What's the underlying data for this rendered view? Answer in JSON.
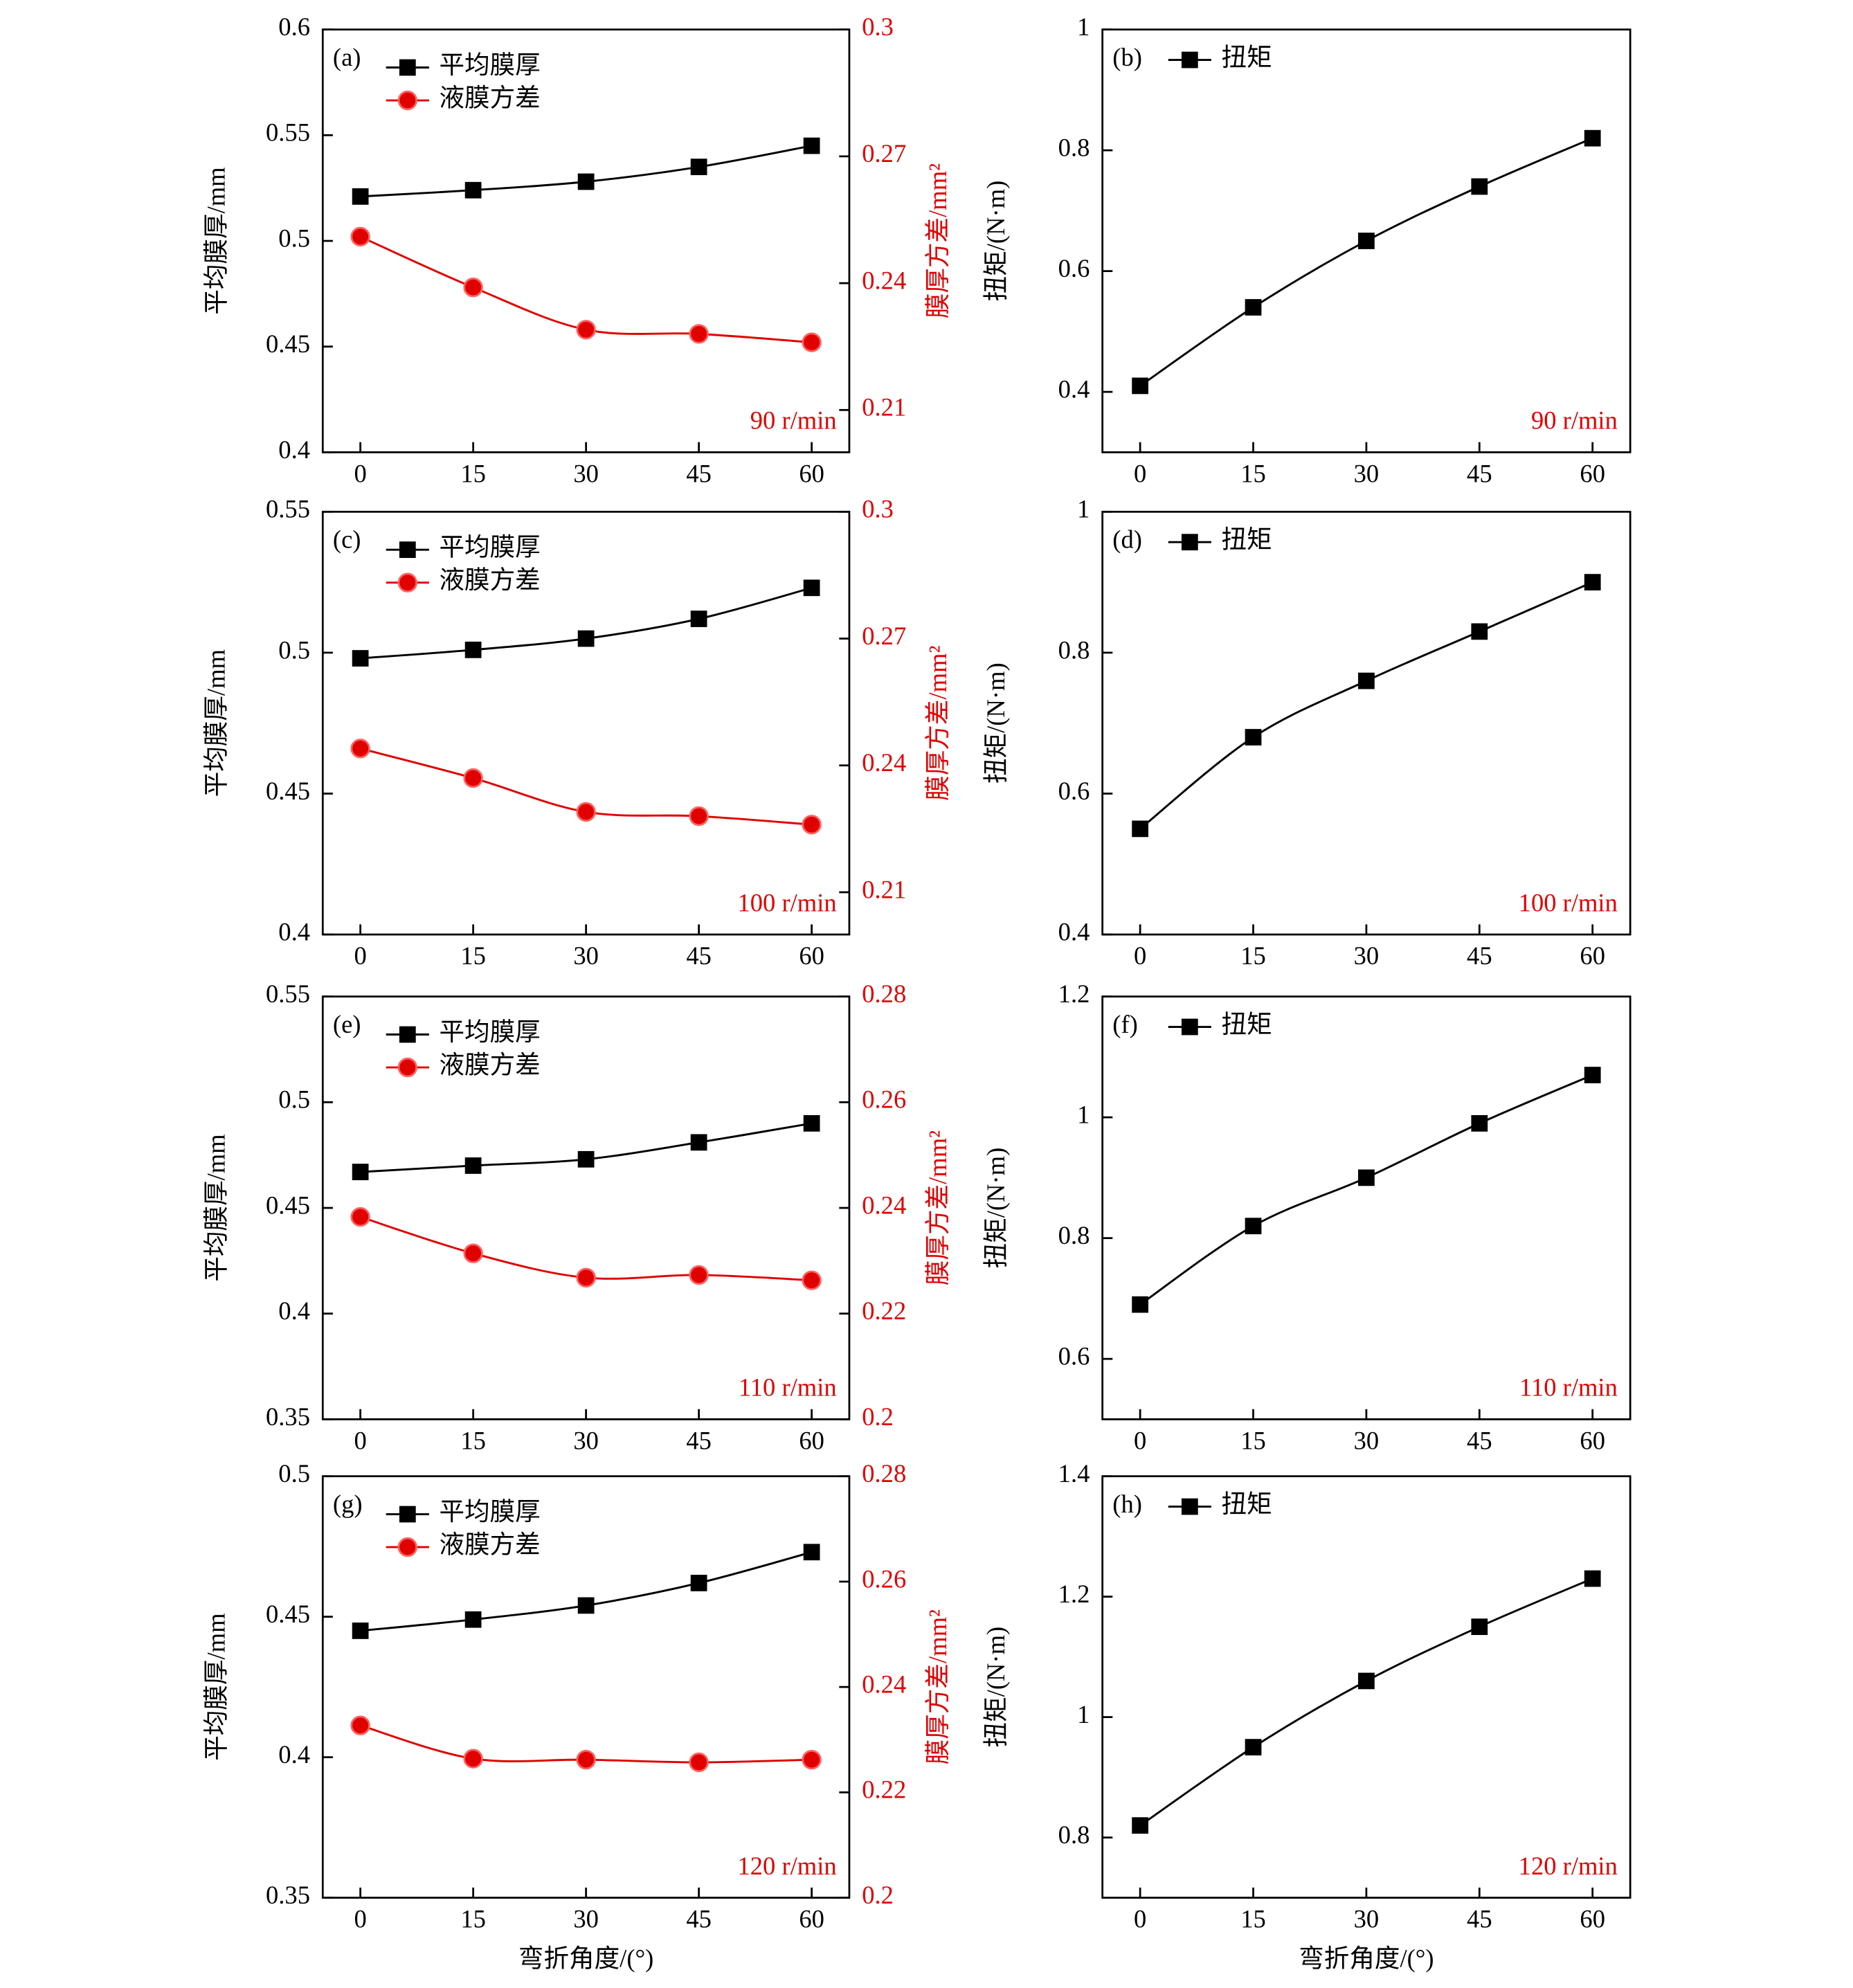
{
  "chart_data": [
    {
      "type": "line",
      "label": "(a)",
      "annotation": "90 r/min",
      "x": [
        0,
        15,
        30,
        45,
        60
      ],
      "xlim": [
        -5,
        65
      ],
      "xticks": [
        0,
        15,
        30,
        45,
        60
      ],
      "ylabel": "平均膜厚/mm",
      "ylim": [
        0.4,
        0.6
      ],
      "yticks": [
        0.4,
        0.45,
        0.5,
        0.55,
        0.6
      ],
      "y2label": "膜厚方差/mm²",
      "y2lim": [
        0.2,
        0.3
      ],
      "y2ticks": [
        0.21,
        0.24,
        0.27,
        0.3
      ],
      "series": [
        {
          "name": "平均膜厚",
          "color": "#000000",
          "marker": "square",
          "values": [
            0.521,
            0.524,
            0.528,
            0.535,
            0.545
          ]
        },
        {
          "name": "液膜方差",
          "color": "#e00000",
          "marker": "circle",
          "axis": "y2",
          "values": [
            0.251,
            0.239,
            0.229,
            0.228,
            0.226
          ]
        }
      ]
    },
    {
      "type": "line",
      "label": "(b)",
      "annotation": "90 r/min",
      "x": [
        0,
        15,
        30,
        45,
        60
      ],
      "xlim": [
        -5,
        65
      ],
      "xticks": [
        0,
        15,
        30,
        45,
        60
      ],
      "ylabel": "扭矩/(N·m)",
      "ylim": [
        0.3,
        1.0
      ],
      "yticks": [
        0.4,
        0.6,
        0.8,
        1.0
      ],
      "series": [
        {
          "name": "扭矩",
          "color": "#000000",
          "marker": "square",
          "values": [
            0.41,
            0.54,
            0.65,
            0.74,
            0.82
          ]
        }
      ]
    },
    {
      "type": "line",
      "label": "(c)",
      "annotation": "100 r/min",
      "x": [
        0,
        15,
        30,
        45,
        60
      ],
      "xlim": [
        -5,
        65
      ],
      "xticks": [
        0,
        15,
        30,
        45,
        60
      ],
      "ylabel": "平均膜厚/mm",
      "ylim": [
        0.4,
        0.55
      ],
      "yticks": [
        0.4,
        0.45,
        0.5,
        0.55
      ],
      "y2label": "膜厚方差/mm²",
      "y2lim": [
        0.2,
        0.3
      ],
      "y2ticks": [
        0.21,
        0.24,
        0.27,
        0.3
      ],
      "series": [
        {
          "name": "平均膜厚",
          "color": "#000000",
          "marker": "square",
          "values": [
            0.498,
            0.501,
            0.505,
            0.512,
            0.523
          ]
        },
        {
          "name": "液膜方差",
          "color": "#e00000",
          "marker": "circle",
          "axis": "y2",
          "values": [
            0.244,
            0.237,
            0.229,
            0.228,
            0.226
          ]
        }
      ]
    },
    {
      "type": "line",
      "label": "(d)",
      "annotation": "100 r/min",
      "x": [
        0,
        15,
        30,
        45,
        60
      ],
      "xlim": [
        -5,
        65
      ],
      "xticks": [
        0,
        15,
        30,
        45,
        60
      ],
      "ylabel": "扭矩/(N·m)",
      "ylim": [
        0.4,
        1.0
      ],
      "yticks": [
        0.4,
        0.6,
        0.8,
        1.0
      ],
      "series": [
        {
          "name": "扭矩",
          "color": "#000000",
          "marker": "square",
          "values": [
            0.55,
            0.68,
            0.76,
            0.83,
            0.9
          ]
        }
      ]
    },
    {
      "type": "line",
      "label": "(e)",
      "annotation": "110 r/min",
      "x": [
        0,
        15,
        30,
        45,
        60
      ],
      "xlim": [
        -5,
        65
      ],
      "xticks": [
        0,
        15,
        30,
        45,
        60
      ],
      "ylabel": "平均膜厚/mm",
      "ylim": [
        0.35,
        0.55
      ],
      "yticks": [
        0.35,
        0.4,
        0.45,
        0.5,
        0.55
      ],
      "y2label": "膜厚方差/mm²",
      "y2lim": [
        0.2,
        0.28
      ],
      "y2ticks": [
        0.2,
        0.22,
        0.24,
        0.26,
        0.28
      ],
      "series": [
        {
          "name": "平均膜厚",
          "color": "#000000",
          "marker": "square",
          "values": [
            0.467,
            0.47,
            0.473,
            0.481,
            0.49
          ]
        },
        {
          "name": "液膜方差",
          "color": "#e00000",
          "marker": "circle",
          "axis": "y2",
          "values": [
            0.2383,
            0.2314,
            0.2268,
            0.2273,
            0.2263
          ]
        }
      ]
    },
    {
      "type": "line",
      "label": "(f)",
      "annotation": "110 r/min",
      "x": [
        0,
        15,
        30,
        45,
        60
      ],
      "xlim": [
        -5,
        65
      ],
      "xticks": [
        0,
        15,
        30,
        45,
        60
      ],
      "ylabel": "扭矩/(N·m)",
      "ylim": [
        0.5,
        1.2
      ],
      "yticks": [
        0.6,
        0.8,
        1.0,
        1.2
      ],
      "series": [
        {
          "name": "扭矩",
          "color": "#000000",
          "marker": "square",
          "values": [
            0.69,
            0.82,
            0.9,
            0.99,
            1.07
          ]
        }
      ]
    },
    {
      "type": "line",
      "label": "(g)",
      "annotation": "120 r/min",
      "x": [
        0,
        15,
        30,
        45,
        60
      ],
      "xlim": [
        -5,
        65
      ],
      "xticks": [
        0,
        15,
        30,
        45,
        60
      ],
      "xlabel": "弯折角度/(°)",
      "ylabel": "平均膜厚/mm",
      "ylim": [
        0.35,
        0.5
      ],
      "yticks": [
        0.35,
        0.4,
        0.45,
        0.5
      ],
      "y2label": "膜厚方差/mm²",
      "y2lim": [
        0.2,
        0.28
      ],
      "y2ticks": [
        0.2,
        0.22,
        0.24,
        0.26,
        0.28
      ],
      "series": [
        {
          "name": "平均膜厚",
          "color": "#000000",
          "marker": "square",
          "values": [
            0.445,
            0.449,
            0.454,
            0.462,
            0.473
          ]
        },
        {
          "name": "液膜方差",
          "color": "#e00000",
          "marker": "circle",
          "axis": "y2",
          "values": [
            0.2327,
            0.2264,
            0.2262,
            0.2257,
            0.2262
          ]
        }
      ]
    },
    {
      "type": "line",
      "label": "(h)",
      "annotation": "120 r/min",
      "x": [
        0,
        15,
        30,
        45,
        60
      ],
      "xlim": [
        -5,
        65
      ],
      "xticks": [
        0,
        15,
        30,
        45,
        60
      ],
      "xlabel": "弯折角度/(°)",
      "ylabel": "扭矩/(N·m)",
      "ylim": [
        0.7,
        1.4
      ],
      "yticks": [
        0.8,
        1.0,
        1.2,
        1.4
      ],
      "series": [
        {
          "name": "扭矩",
          "color": "#000000",
          "marker": "square",
          "values": [
            0.82,
            0.95,
            1.06,
            1.15,
            1.23
          ]
        }
      ]
    }
  ]
}
